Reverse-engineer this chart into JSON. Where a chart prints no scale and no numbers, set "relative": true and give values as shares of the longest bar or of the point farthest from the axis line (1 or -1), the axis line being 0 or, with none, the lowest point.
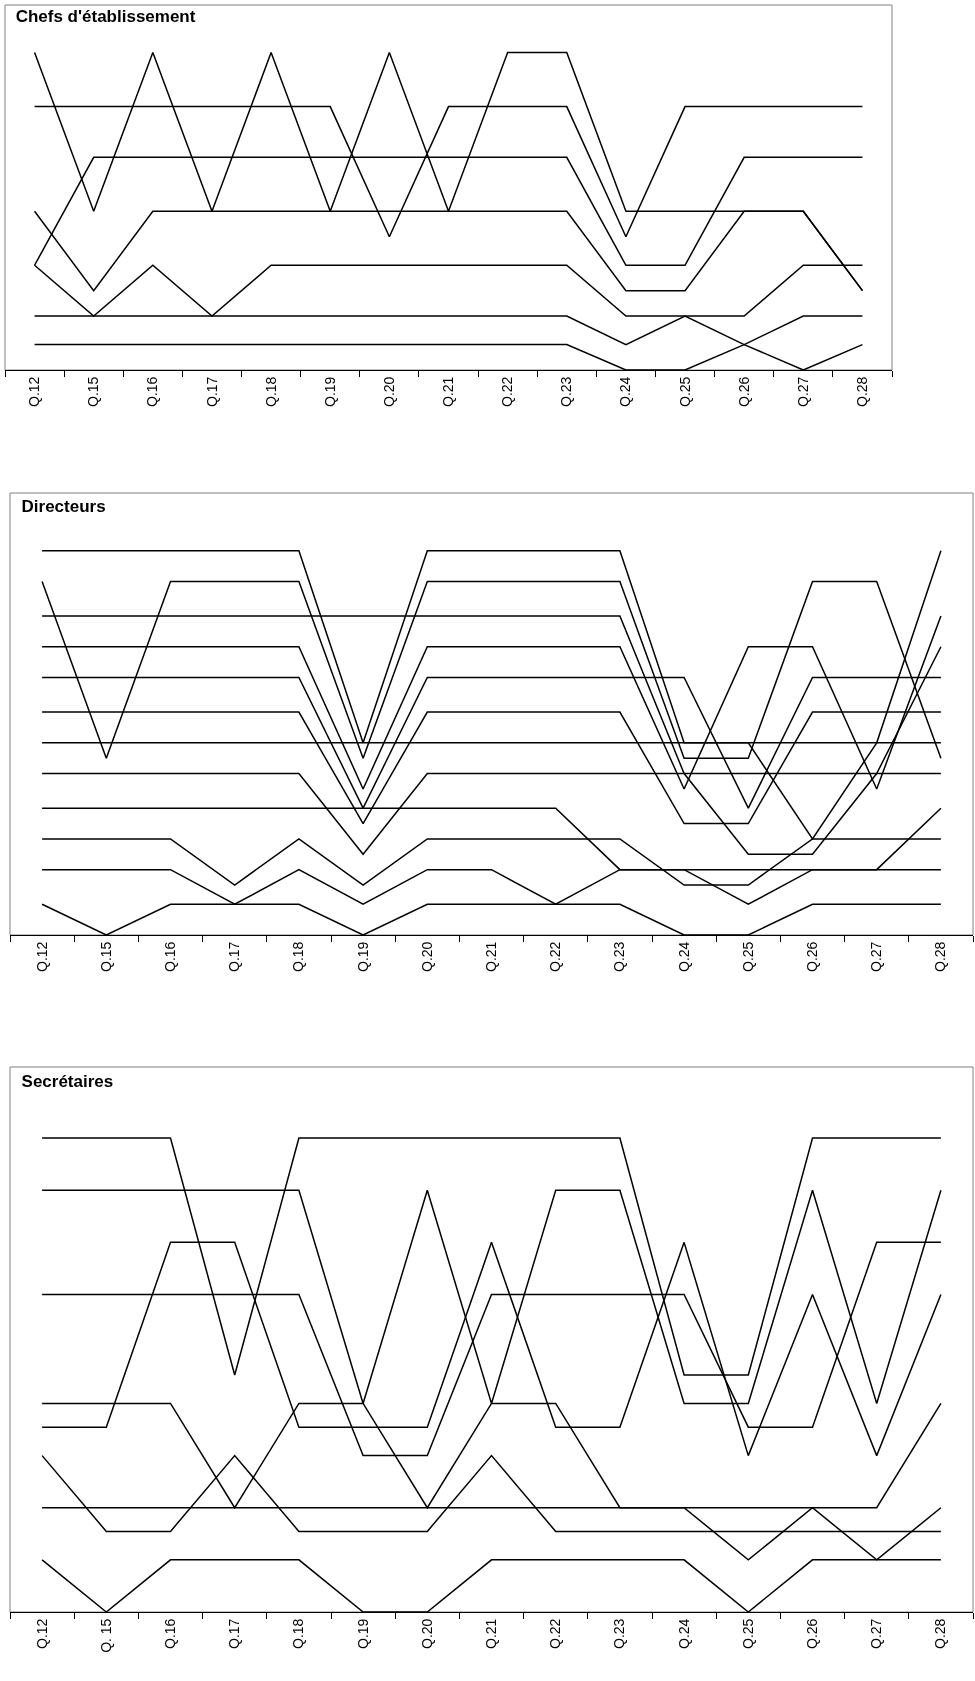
{
  "chart_data": [
    {
      "type": "line",
      "title": "Chefs d'établissement",
      "relative": true,
      "categories": [
        "Q.12",
        "Q.15",
        "Q.16",
        "Q.17",
        "Q.18",
        "Q.19",
        "Q.20",
        "Q.21",
        "Q.22",
        "Q.23",
        "Q.24",
        "Q.25",
        "Q.26",
        "Q.27",
        "Q.28"
      ],
      "series": [
        {
          "color": "#000000",
          "values": [
            1,
            0.5,
            1,
            0.5,
            1,
            0.5,
            1,
            0.5,
            1,
            1,
            0.5,
            0.5,
            0.5,
            0.5,
            0.25
          ]
        },
        {
          "color": "#000000",
          "values": [
            0.83,
            0.83,
            0.83,
            0.83,
            0.83,
            0.83,
            0.42,
            0.83,
            0.83,
            0.83,
            0.42,
            0.83,
            0.83,
            0.83,
            0.83
          ]
        },
        {
          "color": "#000000",
          "values": [
            0.33,
            0.67,
            0.67,
            0.67,
            0.67,
            0.67,
            0.67,
            0.67,
            0.67,
            0.67,
            0.33,
            0.33,
            0.67,
            0.67,
            0.67
          ]
        },
        {
          "color": "#000000",
          "values": [
            0.5,
            0.25,
            0.5,
            0.5,
            0.5,
            0.5,
            0.5,
            0.5,
            0.5,
            0.5,
            0.25,
            0.25,
            0.5,
            0.5,
            0.25
          ]
        },
        {
          "color": "#000000",
          "values": [
            0.33,
            0.17,
            0.33,
            0.17,
            0.33,
            0.33,
            0.33,
            0.33,
            0.33,
            0.33,
            0.17,
            0.17,
            0.17,
            0.33,
            0.33
          ]
        },
        {
          "color": "#000000",
          "values": [
            0.17,
            0.17,
            0.17,
            0.17,
            0.17,
            0.17,
            0.17,
            0.17,
            0.17,
            0.17,
            0.08,
            0.17,
            0.08,
            0,
            0.08
          ]
        },
        {
          "color": "#000000",
          "values": [
            0.08,
            0.08,
            0.08,
            0.08,
            0.08,
            0.08,
            0.08,
            0.08,
            0.08,
            0.08,
            0,
            0,
            0.08,
            0.17,
            0.17
          ]
        }
      ]
    },
    {
      "type": "line",
      "title": "Directeurs",
      "relative": true,
      "categories": [
        "Q.12",
        "Q.15",
        "Q.16",
        "Q.17",
        "Q.18",
        "Q.19",
        "Q.20",
        "Q.21",
        "Q.22",
        "Q.23",
        "Q.24",
        "Q.25",
        "Q.26",
        "Q.27",
        "Q.28"
      ],
      "series": [
        {
          "color": "#000000",
          "values": [
            1,
            1,
            1,
            1,
            1,
            0.5,
            1,
            1,
            1,
            1,
            0.5,
            0.5,
            0.25,
            0.5,
            1
          ]
        },
        {
          "color": "#000000",
          "values": [
            0.92,
            0.46,
            0.92,
            0.92,
            0.92,
            0.46,
            0.92,
            0.92,
            0.92,
            0.92,
            0.46,
            0.46,
            0.92,
            0.92,
            0.46
          ]
        },
        {
          "color": "#000000",
          "values": [
            0.83,
            0.83,
            0.83,
            0.83,
            0.83,
            0.83,
            0.83,
            0.83,
            0.83,
            0.83,
            0.42,
            0.21,
            0.21,
            0.42,
            0.75
          ]
        },
        {
          "color": "#000000",
          "values": [
            0.75,
            0.75,
            0.75,
            0.75,
            0.75,
            0.38,
            0.75,
            0.75,
            0.75,
            0.75,
            0.38,
            0.75,
            0.75,
            0.38,
            0.83
          ]
        },
        {
          "color": "#000000",
          "values": [
            0.67,
            0.67,
            0.67,
            0.67,
            0.67,
            0.33,
            0.67,
            0.67,
            0.67,
            0.67,
            0.67,
            0.33,
            0.67,
            0.67,
            0.67
          ]
        },
        {
          "color": "#000000",
          "values": [
            0.58,
            0.58,
            0.58,
            0.58,
            0.58,
            0.29,
            0.58,
            0.58,
            0.58,
            0.58,
            0.29,
            0.29,
            0.58,
            0.58,
            0.58
          ]
        },
        {
          "color": "#000000",
          "values": [
            0.5,
            0.5,
            0.5,
            0.5,
            0.5,
            0.5,
            0.5,
            0.5,
            0.5,
            0.5,
            0.5,
            0.5,
            0.5,
            0.5,
            0.5
          ]
        },
        {
          "color": "#000000",
          "values": [
            0.42,
            0.42,
            0.42,
            0.42,
            0.42,
            0.21,
            0.42,
            0.42,
            0.42,
            0.42,
            0.42,
            0.42,
            0.42,
            0.42,
            0.42
          ]
        },
        {
          "color": "#000000",
          "values": [
            0.33,
            0.33,
            0.33,
            0.33,
            0.33,
            0.33,
            0.33,
            0.33,
            0.33,
            0.17,
            0.17,
            0.17,
            0.17,
            0.17,
            0.33
          ]
        },
        {
          "color": "#000000",
          "values": [
            0.25,
            0.25,
            0.25,
            0.13,
            0.25,
            0.13,
            0.25,
            0.25,
            0.25,
            0.25,
            0.13,
            0.13,
            0.25,
            0.25,
            0.25
          ]
        },
        {
          "color": "#000000",
          "values": [
            0.17,
            0.17,
            0.17,
            0.08,
            0.17,
            0.08,
            0.17,
            0.17,
            0.08,
            0.17,
            0.17,
            0.08,
            0.17,
            0.17,
            0.17
          ]
        },
        {
          "color": "#000000",
          "values": [
            0.08,
            0,
            0.08,
            0.08,
            0.08,
            0,
            0.08,
            0.08,
            0.08,
            0.08,
            0,
            0,
            0.08,
            0.08,
            0.08
          ]
        }
      ]
    },
    {
      "type": "line",
      "title": "Secrétaires",
      "relative": true,
      "categories": [
        "Q.12",
        "Q. 15",
        "Q.16",
        "Q.17",
        "Q.18",
        "Q.19",
        "Q.20",
        "Q.21",
        "Q.22",
        "Q.23",
        "Q.24",
        "Q.25",
        "Q.26",
        "Q.27",
        "Q.28"
      ],
      "series": [
        {
          "color": "#000000",
          "values": [
            1,
            1,
            1,
            0.5,
            1,
            1,
            1,
            1,
            1,
            1,
            0.5,
            0.5,
            1,
            1,
            1
          ]
        },
        {
          "color": "#000000",
          "values": [
            0.89,
            0.89,
            0.89,
            0.89,
            0.89,
            0.44,
            0.89,
            0.44,
            0.89,
            0.89,
            0.44,
            0.44,
            0.89,
            0.44,
            0.89
          ]
        },
        {
          "color": "#000000",
          "values": [
            0.39,
            0.39,
            0.78,
            0.78,
            0.39,
            0.39,
            0.39,
            0.78,
            0.39,
            0.39,
            0.78,
            0.33,
            0.67,
            0.33,
            0.67
          ]
        },
        {
          "color": "#000000",
          "values": [
            0.67,
            0.67,
            0.67,
            0.67,
            0.67,
            0.33,
            0.33,
            0.67,
            0.67,
            0.67,
            0.67,
            0.39,
            0.39,
            0.78,
            0.78
          ]
        },
        {
          "color": "#000000",
          "values": [
            0.44,
            0.44,
            0.44,
            0.22,
            0.44,
            0.44,
            0.22,
            0.44,
            0.44,
            0.22,
            0.22,
            0.22,
            0.22,
            0.22,
            0.44
          ]
        },
        {
          "color": "#000000",
          "values": [
            0.33,
            0.17,
            0.17,
            0.33,
            0.17,
            0.17,
            0.17,
            0.33,
            0.17,
            0.17,
            0.17,
            0.17,
            0.17,
            0.17,
            0.17
          ]
        },
        {
          "color": "#000000",
          "values": [
            0.22,
            0.22,
            0.22,
            0.22,
            0.22,
            0.22,
            0.22,
            0.22,
            0.22,
            0.22,
            0.22,
            0.11,
            0.22,
            0.11,
            0.22
          ]
        },
        {
          "color": "#000000",
          "values": [
            0.11,
            0,
            0.11,
            0.11,
            0.11,
            0,
            0,
            0.11,
            0.11,
            0.11,
            0.11,
            0,
            0.11,
            0.11,
            0.11
          ]
        }
      ]
    }
  ]
}
